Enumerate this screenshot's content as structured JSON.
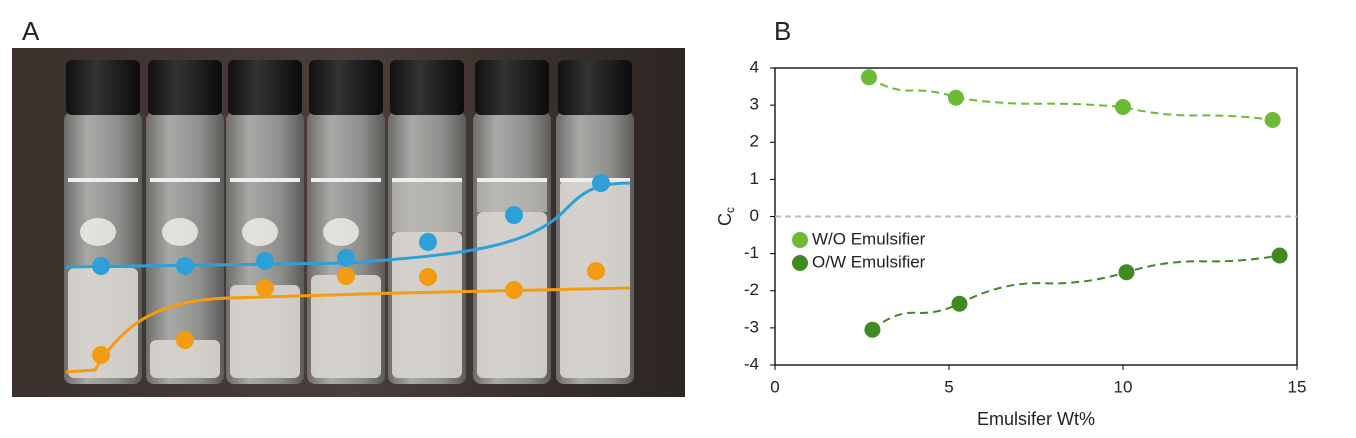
{
  "panel_labels": {
    "a": "A",
    "b": "B"
  },
  "chart_data": {
    "type": "scatter",
    "x_label": "Emulsifer Wt%",
    "y_label": "C",
    "y_label_subscript": "c",
    "xlim": [
      0,
      15
    ],
    "xticks": [
      0,
      5,
      10,
      15
    ],
    "ylim": [
      -4,
      4
    ],
    "yticks": [
      -4,
      -3,
      -2,
      -1,
      0,
      1,
      2,
      3,
      4
    ],
    "zero_line": true,
    "legend": "left",
    "trend_line": "dashed",
    "series": [
      {
        "name": "W/O Emulsifier",
        "color": "#6dbb35",
        "x": [
          2.7,
          5.2,
          10.0,
          14.3
        ],
        "values": [
          3.75,
          3.2,
          2.95,
          2.6
        ]
      },
      {
        "name": "O/W Emulsifier",
        "color": "#3f8a22",
        "x": [
          2.8,
          5.3,
          10.1,
          14.5
        ],
        "values": [
          -3.05,
          -2.35,
          -1.5,
          -1.05
        ]
      }
    ]
  }
}
